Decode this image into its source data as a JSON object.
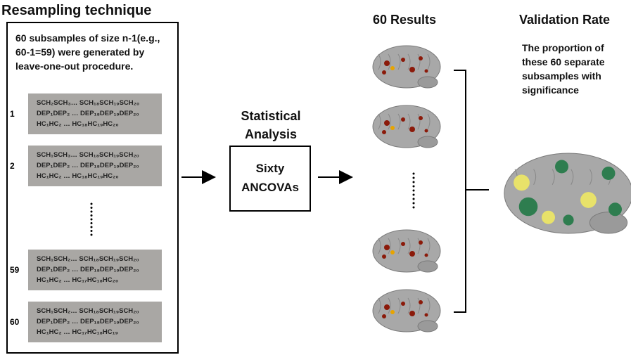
{
  "left": {
    "title": "Resampling technique",
    "description": "60 subsamples of size n-1(e.g., 60-1=59) were generated by leave-one-out procedure.",
    "subsamples": [
      {
        "label": "1",
        "lines": [
          "SCH₂SCH₃… SCH₁₈SCH₁₉SCH₂₀",
          "DEP₁DEP₂ … DEP₁₈DEP₁₉DEP₂₀",
          "HC₁HC₂ … HC₁₈HC₁₉HC₂₀"
        ]
      },
      {
        "label": "2",
        "lines": [
          "SCH₁SCH₃… SCH₁₈SCH₁₉SCH₂₀",
          "DEP₁DEP₂ … DEP₁₈DEP₁₉DEP₂₀",
          "HC₁HC₂ … HC₁₈HC₁₉HC₂₀"
        ]
      },
      {
        "label": "59",
        "lines": [
          "SCH₁SCH₂… SCH₁₈SCH₁₉SCH₂₀",
          "DEP₁DEP₂ … DEP₁₈DEP₁₉DEP₂₀",
          "HC₁HC₂ … HC₁₇HC₁₈HC₂₀"
        ]
      },
      {
        "label": "60",
        "lines": [
          "SCH₁SCH₂… SCH₁₈SCH₁₉SCH₂₀",
          "DEP₁DEP₂ … DEP₁₈DEP₁₉DEP₂₀",
          "HC₁HC₂ … HC₁₇HC₁₈HC₁₉"
        ]
      }
    ]
  },
  "analysis": {
    "title": "Statistical Analysis",
    "box": "Sixty ANCOVAs"
  },
  "results": {
    "title": "60 Results"
  },
  "validation": {
    "title": "Validation Rate",
    "description": "The proportion of these 60 separate subsamples with significance"
  }
}
